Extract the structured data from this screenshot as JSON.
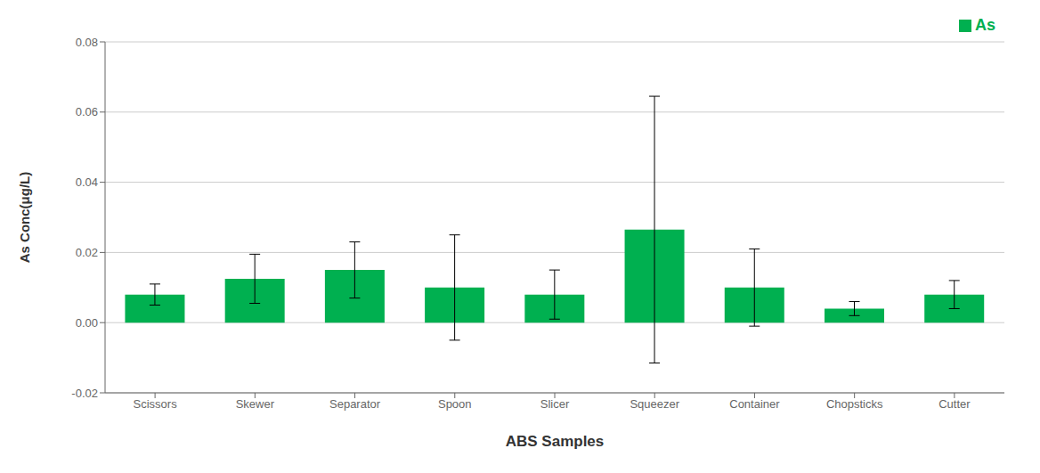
{
  "chart_data": {
    "type": "bar",
    "xlabel": "ABS Samples",
    "ylabel": "As Conc(μg/L)",
    "categories": [
      "Scissors",
      "Skewer",
      "Separator",
      "Spoon",
      "Slicer",
      "Squeezer",
      "Container",
      "Chopsticks",
      "Cutter"
    ],
    "series": [
      {
        "name": "As",
        "color": "#00B050",
        "values": [
          0.008,
          0.0125,
          0.015,
          0.01,
          0.008,
          0.0265,
          0.01,
          0.004,
          0.008
        ],
        "errors": [
          0.003,
          0.007,
          0.008,
          0.015,
          0.007,
          0.038,
          0.011,
          0.002,
          0.004
        ]
      }
    ],
    "ylim": [
      -0.02,
      0.08
    ],
    "yticks": [
      -0.02,
      {
        "value": 0,
        "label": "0.00"
      },
      0.02,
      0.04,
      0.06,
      0.08
    ],
    "grid": true,
    "legend": "upper right"
  }
}
